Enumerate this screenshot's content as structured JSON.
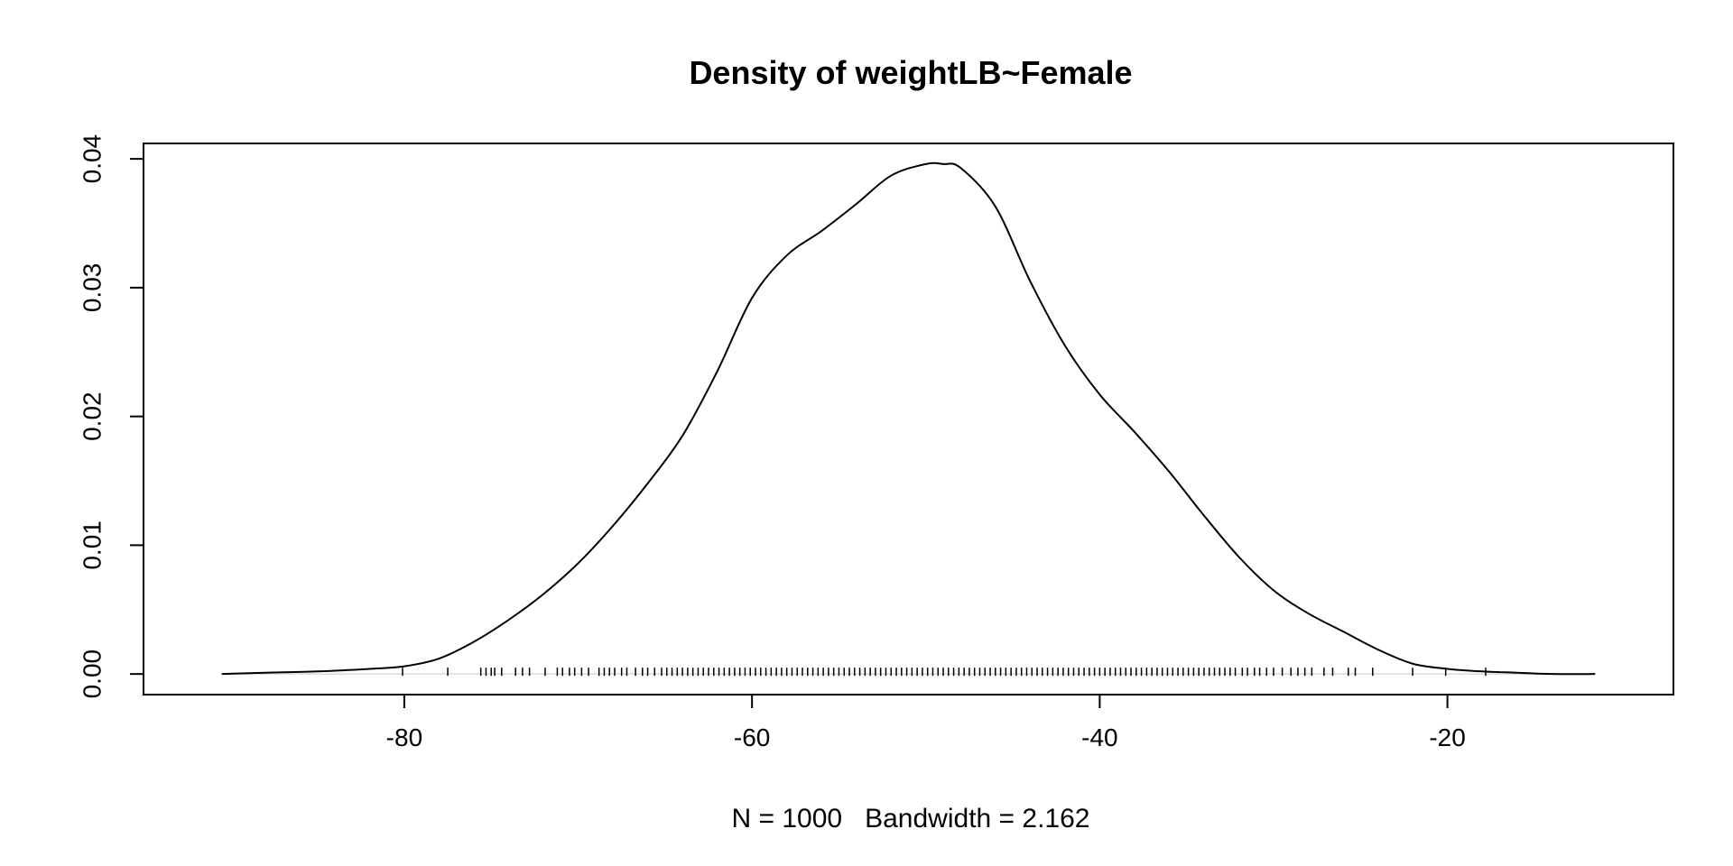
{
  "chart_data": {
    "type": "line",
    "title": "Density of weightLB~Female",
    "xlabel": "N = 1000   Bandwidth = 2.162",
    "ylabel": "",
    "xlim": [
      -95,
      -7
    ],
    "ylim": [
      -0.0016,
      0.0412
    ],
    "x_ticks": [
      -80,
      -60,
      -40,
      -20
    ],
    "x_tick_labels": [
      "-80",
      "-60",
      "-40",
      "-20"
    ],
    "y_ticks": [
      0.0,
      0.01,
      0.02,
      0.03,
      0.04
    ],
    "y_tick_labels": [
      "0.00",
      "0.01",
      "0.02",
      "0.03",
      "0.04"
    ],
    "grid": false,
    "legend": "none",
    "baseline": 0,
    "series": [
      {
        "x": [
          -90.5,
          -88,
          -85,
          -82,
          -80,
          -78,
          -76,
          -74,
          -72,
          -70,
          -68,
          -66,
          -64,
          -62,
          -60,
          -58,
          -56,
          -54,
          -52,
          -50,
          -49,
          -48,
          -46,
          -44,
          -42,
          -40,
          -38,
          -36,
          -34,
          -32,
          -30,
          -28,
          -26,
          -24,
          -22,
          -20,
          -18,
          -16,
          -14,
          -11.5
        ],
        "y": [
          0.0,
          0.0001,
          0.0002,
          0.0004,
          0.0006,
          0.0012,
          0.0025,
          0.0042,
          0.0062,
          0.0086,
          0.0115,
          0.0148,
          0.0185,
          0.0235,
          0.0292,
          0.0325,
          0.0344,
          0.0365,
          0.0387,
          0.0396,
          0.0396,
          0.0393,
          0.0363,
          0.0305,
          0.0255,
          0.0217,
          0.0188,
          0.0157,
          0.0123,
          0.0091,
          0.0065,
          0.0047,
          0.0033,
          0.0019,
          0.0008,
          0.0004,
          0.0002,
          0.0001,
          0.0,
          0.0
        ]
      }
    ],
    "rug": [
      -80.1,
      -77.5,
      -75.6,
      -75.3,
      -75.0,
      -74.8,
      -74.4,
      -73.6,
      -73.2,
      -72.8,
      -71.9,
      -71.2,
      -70.9,
      -70.5,
      -70.2,
      -69.8,
      -69.4,
      -68.8,
      -68.5,
      -68.2,
      -67.9,
      -67.5,
      -67.2,
      -66.7,
      -66.3,
      -66.0,
      -65.6,
      -65.2,
      -64.9,
      -64.6,
      -64.3,
      -64.0,
      -63.7,
      -63.4,
      -63.1,
      -62.8,
      -62.5,
      -62.2,
      -61.9,
      -61.6,
      -61.3,
      -61.0,
      -60.7,
      -60.4,
      -60.1,
      -59.8,
      -59.5,
      -59.2,
      -58.9,
      -58.6,
      -58.3,
      -58.0,
      -57.7,
      -57.4,
      -57.1,
      -56.8,
      -56.5,
      -56.2,
      -55.9,
      -55.6,
      -55.3,
      -55.0,
      -54.7,
      -54.4,
      -54.1,
      -53.8,
      -53.5,
      -53.2,
      -52.9,
      -52.6,
      -52.3,
      -52.0,
      -51.7,
      -51.4,
      -51.1,
      -50.8,
      -50.5,
      -50.2,
      -49.9,
      -49.6,
      -49.3,
      -49.0,
      -48.7,
      -48.4,
      -48.1,
      -47.8,
      -47.5,
      -47.2,
      -46.9,
      -46.6,
      -46.3,
      -46.0,
      -45.7,
      -45.4,
      -45.1,
      -44.8,
      -44.5,
      -44.2,
      -43.9,
      -43.6,
      -43.3,
      -43.0,
      -42.7,
      -42.4,
      -42.1,
      -41.8,
      -41.5,
      -41.2,
      -40.9,
      -40.6,
      -40.3,
      -40.0,
      -39.7,
      -39.4,
      -39.1,
      -38.8,
      -38.5,
      -38.2,
      -37.9,
      -37.6,
      -37.3,
      -37.0,
      -36.7,
      -36.4,
      -36.1,
      -35.8,
      -35.5,
      -35.2,
      -34.9,
      -34.6,
      -34.3,
      -34.0,
      -33.7,
      -33.4,
      -33.1,
      -32.8,
      -32.5,
      -32.2,
      -31.8,
      -31.5,
      -31.1,
      -30.8,
      -30.4,
      -30.0,
      -29.5,
      -29.0,
      -28.6,
      -28.2,
      -27.8,
      -27.1,
      -26.6,
      -25.7,
      -25.3,
      -24.3,
      -22.0,
      -20.1,
      -17.8
    ],
    "colors": {
      "line": "#000000",
      "axis": "#000000",
      "baseline": "#d9d9d9",
      "background": "#ffffff"
    }
  }
}
